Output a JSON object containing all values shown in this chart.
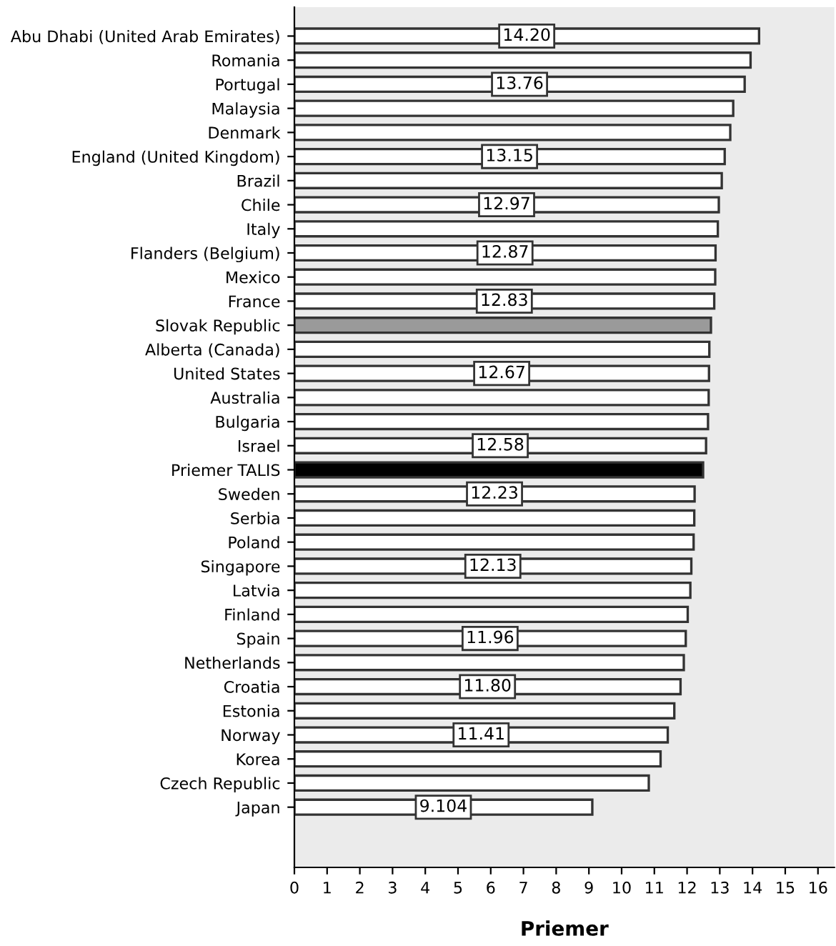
{
  "chart_data": {
    "type": "bar",
    "orientation": "horizontal",
    "xlabel": "Priemer",
    "categories": [
      "Abu Dhabi (United Arab Emirates)",
      "Romania",
      "Portugal",
      "Malaysia",
      "Denmark",
      "England (United Kingdom)",
      "Brazil",
      "Chile",
      "Italy",
      "Flanders (Belgium)",
      "Mexico",
      "France",
      "Slovak Republic",
      "Alberta (Canada)",
      "United States",
      "Australia",
      "Bulgaria",
      "Israel",
      "Priemer TALIS",
      "Sweden",
      "Serbia",
      "Poland",
      "Singapore",
      "Latvia",
      "Finland",
      "Spain",
      "Netherlands",
      "Croatia",
      "Estonia",
      "Norway",
      "Korea",
      "Czech Republic",
      "Japan"
    ],
    "values": [
      14.2,
      13.94,
      13.76,
      13.41,
      13.32,
      13.15,
      13.06,
      12.97,
      12.94,
      12.87,
      12.86,
      12.83,
      12.73,
      12.68,
      12.67,
      12.66,
      12.64,
      12.58,
      12.49,
      12.23,
      12.22,
      12.2,
      12.13,
      12.1,
      12.02,
      11.96,
      11.9,
      11.8,
      11.61,
      11.41,
      11.19,
      10.83,
      9.104
    ],
    "value_labels": [
      "14.20",
      null,
      "13.76",
      null,
      null,
      "13.15",
      null,
      "12.97",
      null,
      "12.87",
      null,
      "12.83",
      null,
      null,
      "12.67",
      null,
      null,
      "12.58",
      null,
      "12.23",
      null,
      null,
      "12.13",
      null,
      null,
      "11.96",
      null,
      "11.80",
      null,
      "11.41",
      null,
      null,
      "9.104"
    ],
    "colors": [
      "#ffffff",
      "#ffffff",
      "#ffffff",
      "#ffffff",
      "#ffffff",
      "#ffffff",
      "#ffffff",
      "#ffffff",
      "#ffffff",
      "#ffffff",
      "#ffffff",
      "#ffffff",
      "#9a9a9a",
      "#ffffff",
      "#ffffff",
      "#ffffff",
      "#ffffff",
      "#ffffff",
      "#000000",
      "#ffffff",
      "#ffffff",
      "#ffffff",
      "#ffffff",
      "#ffffff",
      "#ffffff",
      "#ffffff",
      "#ffffff",
      "#ffffff",
      "#ffffff",
      "#ffffff",
      "#ffffff",
      "#ffffff",
      "#ffffff"
    ],
    "xlim": [
      0,
      16.5
    ],
    "xticks": [
      0,
      1,
      2,
      3,
      4,
      5,
      6,
      7,
      8,
      9,
      10,
      11,
      12,
      13,
      14,
      15,
      16
    ],
    "grid": false,
    "legend": false
  }
}
